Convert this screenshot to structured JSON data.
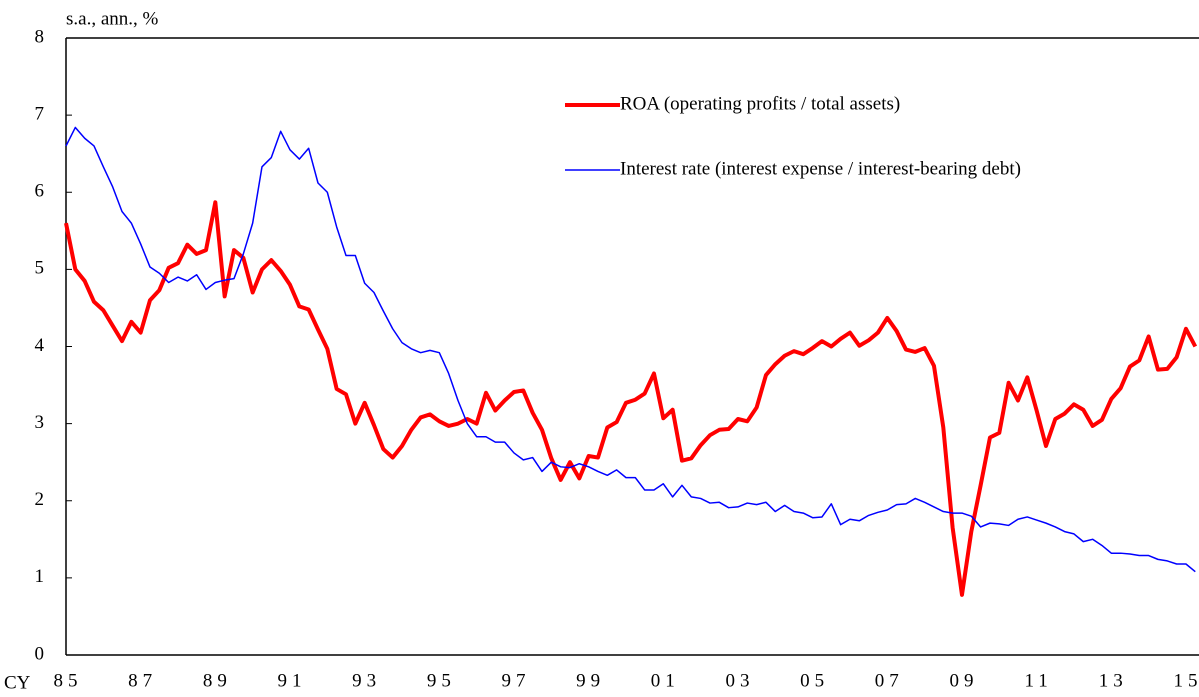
{
  "chart_data": {
    "type": "line",
    "y_label": "s.a., ann., %",
    "x_label": "CY",
    "categories": [
      "85",
      null,
      null,
      null,
      null,
      null,
      null,
      null,
      "87",
      null,
      null,
      null,
      null,
      null,
      null,
      null,
      "89",
      null,
      null,
      null,
      null,
      null,
      null,
      null,
      "91",
      null,
      null,
      null,
      null,
      null,
      null,
      null,
      "93",
      null,
      null,
      null,
      null,
      null,
      null,
      null,
      "95",
      null,
      null,
      null,
      null,
      null,
      null,
      null,
      "97",
      null,
      null,
      null,
      null,
      null,
      null,
      null,
      "99",
      null,
      null,
      null,
      null,
      null,
      null,
      null,
      "01",
      null,
      null,
      null,
      null,
      null,
      null,
      null,
      "03",
      null,
      null,
      null,
      null,
      null,
      null,
      null,
      "05",
      null,
      null,
      null,
      null,
      null,
      null,
      null,
      "07",
      null,
      null,
      null,
      null,
      null,
      null,
      null,
      "09",
      null,
      null,
      null,
      null,
      null,
      null,
      null,
      "11",
      null,
      null,
      null,
      null,
      null,
      null,
      null,
      "13",
      null,
      null,
      null,
      null,
      null,
      null,
      null,
      "15",
      null
    ],
    "series": [
      {
        "name": "ROA (operating profits / total assets)",
        "color": "#ff0000",
        "width": 4,
        "values": [
          5.6,
          5.0,
          4.85,
          4.58,
          4.47,
          4.27,
          4.07,
          4.32,
          4.18,
          4.6,
          4.73,
          5.02,
          5.08,
          5.32,
          5.2,
          5.25,
          5.87,
          4.65,
          5.25,
          5.15,
          4.7,
          5.0,
          5.12,
          4.98,
          4.8,
          4.52,
          4.48,
          4.22,
          3.97,
          3.45,
          3.38,
          3.0,
          3.27,
          2.98,
          2.67,
          2.56,
          2.71,
          2.92,
          3.08,
          3.12,
          3.03,
          2.97,
          3.0,
          3.06,
          3.0,
          3.4,
          3.17,
          3.3,
          3.41,
          3.43,
          3.14,
          2.92,
          2.55,
          2.27,
          2.5,
          2.29,
          2.58,
          2.56,
          2.95,
          3.02,
          3.27,
          3.31,
          3.39,
          3.65,
          3.07,
          3.18,
          2.52,
          2.55,
          2.72,
          2.85,
          2.92,
          2.93,
          3.06,
          3.03,
          3.21,
          3.63,
          3.77,
          3.88,
          3.94,
          3.9,
          3.98,
          4.07,
          4.0,
          4.1,
          4.18,
          4.01,
          4.08,
          4.18,
          4.37,
          4.2,
          3.96,
          3.93,
          3.98,
          3.75,
          2.95,
          1.65,
          0.78,
          1.6,
          2.2,
          2.82,
          2.88,
          3.53,
          3.3,
          3.6,
          3.17,
          2.71,
          3.06,
          3.13,
          3.25,
          3.18,
          2.97,
          3.05,
          3.32,
          3.46,
          3.74,
          3.82,
          4.13,
          3.7,
          3.71,
          3.86,
          4.23,
          4.0
        ]
      },
      {
        "name": "Interest rate (interest expense / interest-bearing debt)",
        "color": "#0000ff",
        "width": 1.5,
        "values": [
          6.6,
          6.84,
          6.7,
          6.6,
          6.33,
          6.07,
          5.75,
          5.6,
          5.33,
          5.03,
          4.95,
          4.83,
          4.9,
          4.85,
          4.93,
          4.74,
          4.83,
          4.86,
          4.88,
          5.2,
          5.6,
          6.33,
          6.45,
          6.79,
          6.55,
          6.43,
          6.57,
          6.12,
          6.0,
          5.55,
          5.18,
          5.18,
          4.82,
          4.7,
          4.46,
          4.23,
          4.05,
          3.97,
          3.92,
          3.95,
          3.92,
          3.65,
          3.3,
          3.0,
          2.83,
          2.83,
          2.76,
          2.76,
          2.62,
          2.53,
          2.56,
          2.38,
          2.5,
          2.44,
          2.43,
          2.48,
          2.44,
          2.38,
          2.33,
          2.4,
          2.3,
          2.3,
          2.14,
          2.14,
          2.22,
          2.05,
          2.2,
          2.05,
          2.03,
          1.97,
          1.98,
          1.91,
          1.92,
          1.97,
          1.95,
          1.98,
          1.86,
          1.94,
          1.86,
          1.84,
          1.78,
          1.79,
          1.96,
          1.69,
          1.76,
          1.74,
          1.81,
          1.85,
          1.88,
          1.95,
          1.96,
          2.03,
          1.98,
          1.92,
          1.86,
          1.84,
          1.84,
          1.8,
          1.66,
          1.71,
          1.7,
          1.68,
          1.76,
          1.79,
          1.75,
          1.71,
          1.66,
          1.6,
          1.57,
          1.47,
          1.5,
          1.42,
          1.32,
          1.32,
          1.31,
          1.29,
          1.29,
          1.24,
          1.22,
          1.18,
          1.18,
          1.08
        ]
      }
    ],
    "ylim": [
      0,
      8
    ],
    "yticks": [
      0,
      1,
      2,
      3,
      4,
      5,
      6,
      7,
      8
    ],
    "grid": false,
    "legend": "upper right"
  }
}
